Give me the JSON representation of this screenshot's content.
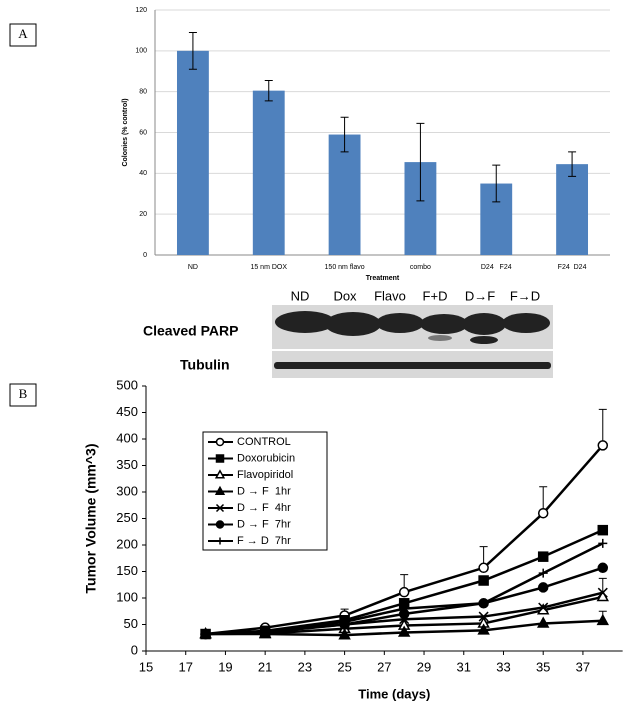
{
  "chart_data": [
    {
      "type": "bar",
      "panel_label": "A",
      "categories": [
        "ND",
        "15 nm DOX",
        "150 nm flavo",
        "combo",
        "D24   F24",
        "F24  D24"
      ],
      "values": [
        100,
        80.5,
        59,
        45.5,
        35,
        44.5
      ],
      "errors": [
        9,
        5,
        8.5,
        19,
        9,
        6
      ],
      "color": "#4f81bd",
      "ylim": [
        0,
        120
      ],
      "yticks": [
        0,
        20,
        40,
        60,
        80,
        100,
        120
      ],
      "grid": true,
      "ylabel": "Colonies (% control)",
      "xlabel": "Treatment"
    },
    {
      "type": "line",
      "panel_label": "B",
      "x": [
        18,
        21,
        25,
        28,
        32,
        35,
        38
      ],
      "xlim": [
        15,
        39
      ],
      "xticks": [
        15,
        17,
        19,
        21,
        23,
        25,
        27,
        29,
        31,
        33,
        35,
        37
      ],
      "ylim": [
        0,
        500
      ],
      "yticks": [
        0,
        50,
        100,
        150,
        200,
        250,
        300,
        350,
        400,
        450,
        500
      ],
      "ylabel": "Tumor Volume (mm^3)",
      "xlabel": "Time (days)",
      "series": [
        {
          "name": "CONTROL",
          "color": "#000000",
          "marker": "circle-open",
          "values": [
            32,
            44,
            67,
            111,
            157,
            260,
            388
          ],
          "errors": [
            null,
            null,
            12,
            33,
            40,
            50,
            68
          ]
        },
        {
          "name": "Doxorubicin",
          "color": "#000000",
          "marker": "square",
          "values": [
            32,
            38,
            58,
            90,
            133,
            178,
            228
          ]
        },
        {
          "name": "Flavopiridol",
          "color": "#000000",
          "marker": "triangle-open",
          "values": [
            32,
            33,
            42,
            48,
            52,
            77,
            102
          ],
          "errors": [
            null,
            null,
            null,
            null,
            null,
            null,
            35
          ]
        },
        {
          "name": "D → F  1hr",
          "color": "#000000",
          "marker": "triangle",
          "values": [
            32,
            32,
            30,
            35,
            39,
            52,
            57
          ],
          "errors": [
            null,
            null,
            null,
            null,
            null,
            null,
            18
          ]
        },
        {
          "name": "D → F  4hr",
          "color": "#000000",
          "marker": "x",
          "values": [
            32,
            36,
            50,
            60,
            65,
            82,
            110
          ]
        },
        {
          "name": "D → F  7hr",
          "color": "#000000",
          "marker": "circle",
          "values": [
            32,
            35,
            50,
            70,
            90,
            120,
            157
          ]
        },
        {
          "name": "F → D  7hr",
          "color": "#000000",
          "marker": "plus",
          "values": [
            32,
            37,
            55,
            80,
            90,
            147,
            203
          ]
        }
      ]
    }
  ],
  "blot": {
    "lanes": [
      "ND",
      "Dox",
      "Flavo",
      "F+D",
      "D→F",
      "F→D"
    ],
    "rows": [
      "Cleaved PARP",
      "Tubulin"
    ]
  }
}
